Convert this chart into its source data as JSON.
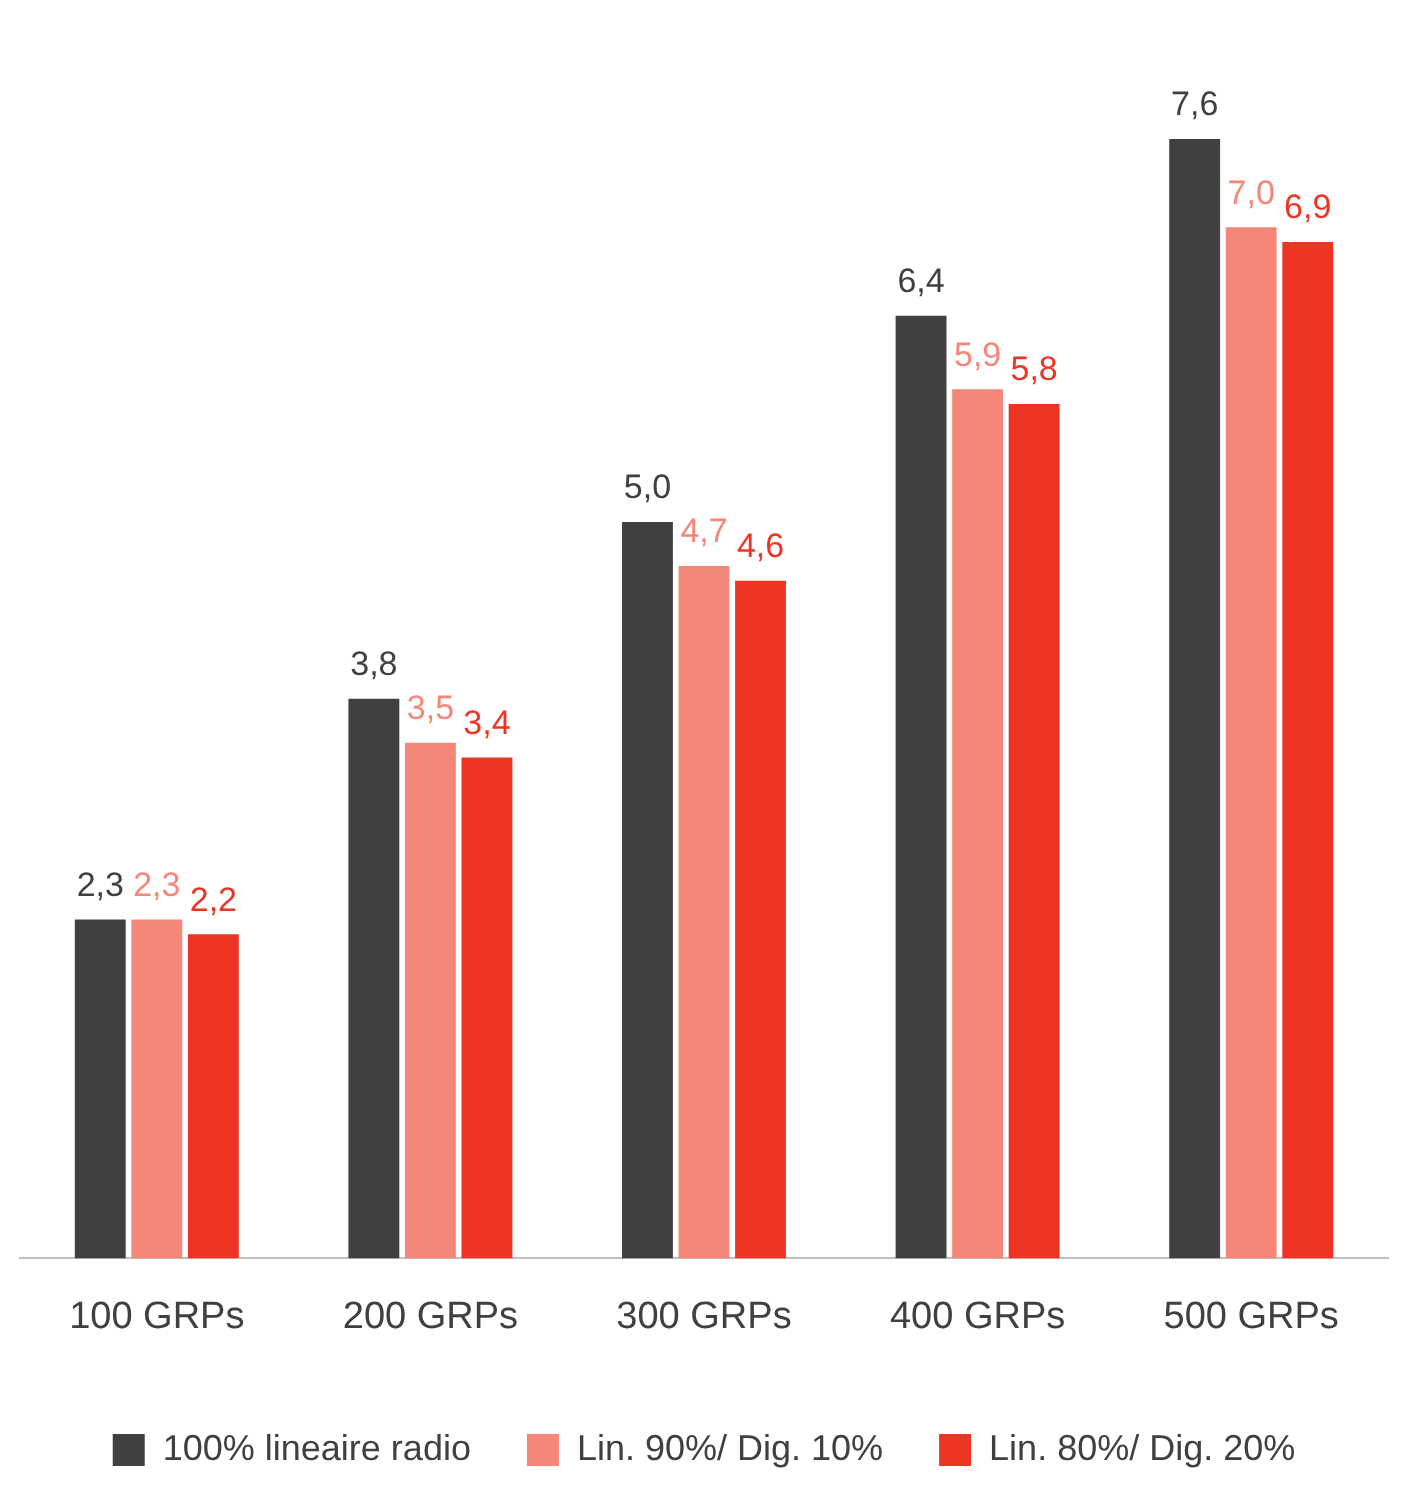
{
  "chart_data": {
    "type": "bar",
    "categories": [
      "100 GRPs",
      "200 GRPs",
      "300 GRPs",
      "400 GRPs",
      "500 GRPs"
    ],
    "series": [
      {
        "name": "100% lineaire radio",
        "color": "#404040",
        "values": [
          2.3,
          3.8,
          5.0,
          6.4,
          7.6
        ],
        "value_labels": [
          "2,3",
          "3,8",
          "5,0",
          "6,4",
          "7,6"
        ]
      },
      {
        "name": "Lin. 90%/ Dig. 10%",
        "color": "#f4877a",
        "values": [
          2.3,
          3.5,
          4.7,
          5.9,
          7.0
        ],
        "value_labels": [
          "2,3",
          "3,5",
          "4,7",
          "5,9",
          "7,0"
        ]
      },
      {
        "name": "Lin. 80%/ Dig. 20%",
        "color": "#ee3524",
        "values": [
          2.2,
          3.4,
          4.6,
          5.8,
          6.9
        ],
        "value_labels": [
          "2,2",
          "3,4",
          "4,6",
          "5,8",
          "6,9"
        ]
      }
    ],
    "grid": false,
    "legend": "bottom"
  }
}
